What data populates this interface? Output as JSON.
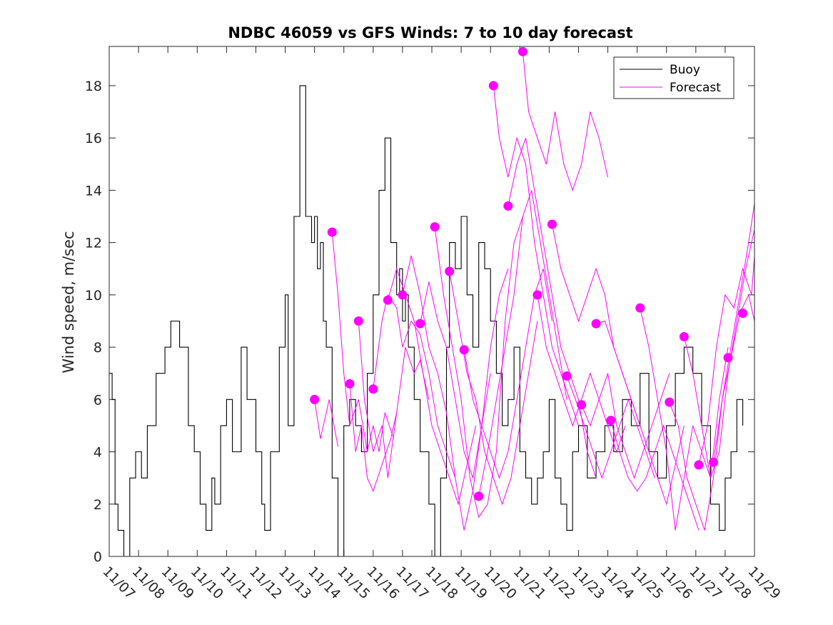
{
  "chart_data": {
    "type": "line",
    "title": "NDBC 46059 vs GFS Winds: 7 to 10 day forecast",
    "xlabel": "",
    "ylabel": "Wind speed, m/sec",
    "xlim": [
      0,
      22
    ],
    "ylim": [
      0,
      19.5
    ],
    "xtick_labels": [
      "11/07",
      "11/08",
      "11/09",
      "11/10",
      "11/11",
      "11/12",
      "11/13",
      "11/14",
      "11/15",
      "11/16",
      "11/17",
      "11/18",
      "11/19",
      "11/20",
      "11/21",
      "11/22",
      "11/23",
      "11/24",
      "11/25",
      "11/26",
      "11/27",
      "11/28",
      "11/29"
    ],
    "ytick_values": [
      0,
      2,
      4,
      6,
      8,
      10,
      12,
      14,
      16,
      18
    ],
    "legend": {
      "position": "top-right",
      "entries": [
        {
          "name": "Buoy",
          "color": "#000000"
        },
        {
          "name": "Forecast",
          "color": "#ff00ff"
        }
      ]
    },
    "series": [
      {
        "name": "Buoy",
        "color": "#000000",
        "x": [
          0,
          0.1,
          0.2,
          0.3,
          0.5,
          0.7,
          0.9,
          1.1,
          1.3,
          1.6,
          1.9,
          2.1,
          2.4,
          2.7,
          2.9,
          3.1,
          3.3,
          3.5,
          3.6,
          3.8,
          4.0,
          4.2,
          4.5,
          4.7,
          5.0,
          5.2,
          5.3,
          5.5,
          5.8,
          6.0,
          6.1,
          6.3,
          6.5,
          6.7,
          6.9,
          7.0,
          7.1,
          7.2,
          7.3,
          7.4,
          7.6,
          7.8,
          8.0,
          8.2,
          8.4,
          8.6,
          8.8,
          9.0,
          9.2,
          9.4,
          9.6,
          9.8,
          9.9,
          10.0,
          10.1,
          10.2,
          10.4,
          10.6,
          10.9,
          11.1,
          11.3,
          11.5,
          11.6,
          11.8,
          12.0,
          12.2,
          12.4,
          12.6,
          12.8,
          13.0,
          13.2,
          13.4,
          13.6,
          13.8,
          14.0,
          14.2,
          14.4,
          14.6,
          14.8,
          15.0,
          15.2,
          15.4,
          15.6,
          15.8,
          16.0,
          16.3,
          16.6,
          16.9,
          17.2,
          17.5,
          17.8,
          18.1,
          18.4,
          18.7,
          19.0,
          19.3,
          19.6,
          19.9,
          20.2,
          20.5,
          20.8,
          21.0,
          21.2,
          21.4,
          21.6
        ],
        "y": [
          7,
          6,
          2,
          1,
          0,
          3,
          4,
          3,
          5,
          7,
          8,
          9,
          8,
          5,
          4,
          2,
          1,
          3,
          2,
          5,
          6,
          4,
          8,
          6,
          4,
          2,
          1,
          4,
          8,
          10,
          5,
          13,
          18,
          13,
          12,
          13,
          11,
          12,
          9,
          8,
          3,
          0,
          5,
          6,
          5,
          4,
          7,
          10,
          14,
          16,
          12,
          10,
          11,
          9,
          10,
          8,
          6,
          4,
          2,
          0,
          3,
          8,
          12,
          11,
          13,
          10,
          8,
          12,
          11,
          9,
          7,
          5,
          6,
          8,
          4,
          3,
          2,
          3,
          4,
          6,
          3,
          2,
          1,
          4,
          5,
          3,
          4,
          5,
          4,
          6,
          5,
          7,
          4,
          3,
          5,
          7,
          8,
          7,
          5,
          2,
          1,
          3,
          4,
          6,
          5
        ]
      },
      {
        "name": "Forecast",
        "color": "#ff00ff",
        "x": [
          7.0,
          7.2,
          7.5,
          7.8
        ],
        "y": [
          6.0,
          4.5,
          6.0,
          4.2
        ]
      },
      {
        "name": "Forecast",
        "color": "#ff00ff",
        "x": [
          7.6,
          7.8,
          8.0,
          8.2,
          8.5,
          8.8,
          9.0,
          9.2,
          9.4,
          9.7
        ],
        "y": [
          12.4,
          10.0,
          7.0,
          5.0,
          6.0,
          4.0,
          5.0,
          4.0,
          5.5,
          4.5
        ]
      },
      {
        "name": "Forecast",
        "color": "#ff00ff",
        "x": [
          8.2,
          8.4,
          8.6,
          8.8,
          9.0,
          9.3,
          9.6,
          9.8
        ],
        "y": [
          6.6,
          4.0,
          5.0,
          3.0,
          2.5,
          3.5,
          4.5,
          5.5
        ]
      },
      {
        "name": "Forecast",
        "color": "#ff00ff",
        "x": [
          8.5,
          8.7,
          9.0,
          9.3,
          9.5,
          9.8,
          10.1,
          10.4,
          10.6,
          10.9
        ],
        "y": [
          9.0,
          6.0,
          4.0,
          5.0,
          3.0,
          5.5,
          8.0,
          7.0,
          7.5,
          6.0
        ]
      },
      {
        "name": "Forecast",
        "color": "#ff00ff",
        "x": [
          9.0,
          9.3,
          9.5,
          9.8,
          10.0,
          10.3,
          10.6,
          10.9,
          11.2,
          11.5,
          11.8
        ],
        "y": [
          6.4,
          9.0,
          10.0,
          9.5,
          8.0,
          9.0,
          8.5,
          7.0,
          5.0,
          4.0,
          3.0
        ]
      },
      {
        "name": "Forecast",
        "color": "#ff00ff",
        "x": [
          9.5,
          9.8,
          10.1,
          10.4,
          10.7,
          11.0,
          11.3,
          11.6,
          11.9,
          12.2,
          12.5
        ],
        "y": [
          9.8,
          11.0,
          10.0,
          9.0,
          7.0,
          5.0,
          4.0,
          3.0,
          2.0,
          3.5,
          5.0
        ]
      },
      {
        "name": "Forecast",
        "color": "#ff00ff",
        "x": [
          10.0,
          10.3,
          10.6,
          10.9,
          11.2,
          11.5,
          11.8,
          12.1,
          12.4,
          12.7,
          13.0
        ],
        "y": [
          10.0,
          11.5,
          10.0,
          8.0,
          7.0,
          5.5,
          3.0,
          1.0,
          2.5,
          5.0,
          7.0
        ]
      },
      {
        "name": "Forecast",
        "color": "#ff00ff",
        "x": [
          10.6,
          10.9,
          11.2,
          11.5,
          11.8,
          12.1,
          12.4,
          12.7,
          13.0,
          13.3,
          13.6
        ],
        "y": [
          8.9,
          10.5,
          9.0,
          8.0,
          6.0,
          4.0,
          3.0,
          5.0,
          8.0,
          10.0,
          11.0
        ]
      },
      {
        "name": "Forecast",
        "color": "#ff00ff",
        "x": [
          11.1,
          11.4,
          11.7,
          12.0,
          12.3,
          12.6,
          12.9,
          13.2,
          13.5,
          13.8,
          14.1
        ],
        "y": [
          12.6,
          10.0,
          8.0,
          6.0,
          3.0,
          1.5,
          2.0,
          4.0,
          9.0,
          12.0,
          13.0
        ]
      },
      {
        "name": "Forecast",
        "color": "#ff00ff",
        "x": [
          11.6,
          11.9,
          12.2,
          12.5,
          12.8,
          13.1,
          13.4,
          13.7,
          14.0,
          14.3,
          14.6
        ],
        "y": [
          10.9,
          9.0,
          7.0,
          6.0,
          4.0,
          3.0,
          2.0,
          3.0,
          5.0,
          7.0,
          9.0
        ]
      },
      {
        "name": "Forecast",
        "color": "#ff00ff",
        "x": [
          12.1,
          12.4,
          12.7,
          13.0,
          13.3,
          13.6,
          13.9,
          14.2,
          14.5,
          14.8,
          15.1
        ],
        "y": [
          7.9,
          6.0,
          5.0,
          4.0,
          3.0,
          4.0,
          6.0,
          8.0,
          10.0,
          11.0,
          9.0
        ]
      },
      {
        "name": "Forecast",
        "color": "#ff00ff",
        "x": [
          12.6,
          12.9,
          13.2,
          13.5,
          13.8,
          14.1,
          14.4,
          14.7,
          15.0,
          15.3,
          15.6
        ],
        "y": [
          2.3,
          4.0,
          6.0,
          8.0,
          10.0,
          13.0,
          14.0,
          12.0,
          10.0,
          8.0,
          6.0
        ]
      },
      {
        "name": "Forecast",
        "color": "#ff00ff",
        "x": [
          13.1,
          13.3,
          13.6,
          13.9,
          14.2,
          14.5,
          14.8,
          15.1,
          15.4,
          15.7,
          16.0
        ],
        "y": [
          18.0,
          16.0,
          14.5,
          16.0,
          15.0,
          12.0,
          10.0,
          8.0,
          7.0,
          6.0,
          5.0
        ]
      },
      {
        "name": "Forecast",
        "color": "#ff00ff",
        "x": [
          13.6,
          13.9,
          14.2,
          14.5,
          14.8,
          15.1,
          15.4,
          15.7,
          16.0,
          16.3,
          16.6
        ],
        "y": [
          13.4,
          15.0,
          16.0,
          14.0,
          12.0,
          10.0,
          8.0,
          7.0,
          6.0,
          4.0,
          3.0
        ]
      },
      {
        "name": "Forecast",
        "color": "#ff00ff",
        "x": [
          14.1,
          14.3,
          14.6,
          14.9,
          15.2,
          15.5,
          15.8,
          16.1,
          16.4,
          16.7,
          17.0
        ],
        "y": [
          19.3,
          17.0,
          16.0,
          15.0,
          17.0,
          15.0,
          14.0,
          15.0,
          17.0,
          16.0,
          14.5
        ]
      },
      {
        "name": "Forecast",
        "color": "#ff00ff",
        "x": [
          14.6,
          14.9,
          15.2,
          15.5,
          15.8,
          16.1,
          16.4,
          16.7,
          17.0,
          17.3,
          17.6
        ],
        "y": [
          10.0,
          8.0,
          7.0,
          6.0,
          5.0,
          6.0,
          7.0,
          6.0,
          5.0,
          4.0,
          5.0
        ]
      },
      {
        "name": "Forecast",
        "color": "#ff00ff",
        "x": [
          15.1,
          15.4,
          15.7,
          16.0,
          16.3,
          16.6,
          16.9,
          17.2,
          17.5,
          17.8,
          18.1
        ],
        "y": [
          12.7,
          11.0,
          10.0,
          9.0,
          10.0,
          11.0,
          10.0,
          8.0,
          7.0,
          6.0,
          5.0
        ]
      },
      {
        "name": "Forecast",
        "color": "#ff00ff",
        "x": [
          15.6,
          15.9,
          16.2,
          16.5,
          16.8,
          17.1,
          17.4,
          17.7,
          18.0,
          18.3,
          18.6
        ],
        "y": [
          6.9,
          6.0,
          5.0,
          4.0,
          3.0,
          4.0,
          5.0,
          6.0,
          5.0,
          4.0,
          3.0
        ]
      },
      {
        "name": "Forecast",
        "color": "#ff00ff",
        "x": [
          16.1,
          16.4,
          16.7,
          17.0,
          17.3,
          17.6,
          17.9,
          18.2,
          18.5,
          18.8,
          19.1
        ],
        "y": [
          5.8,
          5.0,
          6.0,
          7.0,
          5.0,
          4.0,
          3.0,
          4.0,
          5.0,
          6.0,
          7.0
        ]
      },
      {
        "name": "Forecast",
        "color": "#ff00ff",
        "x": [
          16.6,
          16.9,
          17.2,
          17.5,
          17.8,
          18.1,
          18.4,
          18.7,
          19.0,
          19.3,
          19.6
        ],
        "y": [
          8.9,
          9.0,
          8.0,
          7.0,
          6.0,
          5.0,
          4.0,
          3.0,
          2.0,
          3.5,
          5.0
        ]
      },
      {
        "name": "Forecast",
        "color": "#ff00ff",
        "x": [
          17.1,
          17.4,
          17.7,
          18.0,
          18.3,
          18.6,
          18.9,
          19.2,
          19.5,
          19.8,
          20.1
        ],
        "y": [
          5.2,
          4.0,
          3.0,
          2.5,
          3.0,
          4.0,
          5.0,
          4.0,
          3.0,
          2.0,
          1.0
        ]
      },
      {
        "name": "Forecast",
        "color": "#ff00ff",
        "x": [
          18.1,
          18.4,
          18.7,
          19.0,
          19.3,
          19.6,
          19.9,
          20.2,
          20.5,
          20.8,
          21.1
        ],
        "y": [
          9.5,
          8.0,
          6.0,
          4.0,
          1.0,
          3.0,
          5.0,
          4.0,
          3.0,
          6.0,
          8.0
        ]
      },
      {
        "name": "Forecast",
        "color": "#ff00ff",
        "x": [
          19.1,
          19.4,
          19.7,
          20.0,
          20.3,
          20.6,
          20.9,
          21.2,
          21.5,
          21.8,
          22.0
        ],
        "y": [
          5.9,
          5.0,
          3.0,
          2.0,
          1.0,
          3.0,
          6.0,
          8.0,
          10.0,
          12.0,
          13.5
        ]
      },
      {
        "name": "Forecast",
        "color": "#ff00ff",
        "x": [
          19.6,
          19.9,
          20.2,
          20.5,
          20.8,
          21.1,
          21.4,
          21.7,
          22.0
        ],
        "y": [
          8.4,
          7.0,
          5.0,
          3.0,
          4.0,
          7.0,
          9.0,
          11.0,
          12.5
        ]
      },
      {
        "name": "Forecast",
        "color": "#ff00ff",
        "x": [
          20.1,
          20.4,
          20.7,
          21.0,
          21.3,
          21.6,
          21.9,
          22.0
        ],
        "y": [
          3.5,
          5.0,
          8.0,
          10.0,
          9.5,
          11.0,
          10.0,
          11.5
        ]
      },
      {
        "name": "Forecast",
        "color": "#ff00ff",
        "x": [
          20.6,
          20.9,
          21.2,
          21.5,
          21.8,
          22.0
        ],
        "y": [
          3.6,
          6.0,
          7.6,
          9.3,
          10.0,
          9.0
        ]
      }
    ],
    "forecast_markers": {
      "x": [
        7.0,
        7.6,
        8.2,
        8.5,
        9.0,
        9.5,
        10.0,
        10.6,
        11.1,
        11.6,
        12.1,
        12.6,
        13.1,
        13.6,
        14.1,
        14.6,
        15.1,
        15.6,
        16.1,
        16.6,
        17.1,
        18.1,
        19.1,
        19.6,
        20.1,
        20.6,
        21.1,
        21.6
      ],
      "y": [
        6.0,
        12.4,
        6.6,
        9.0,
        6.4,
        9.8,
        10.0,
        8.9,
        12.6,
        10.9,
        7.9,
        2.3,
        18.0,
        13.4,
        19.3,
        10.0,
        12.7,
        6.9,
        5.8,
        8.9,
        5.2,
        9.5,
        5.9,
        8.4,
        3.5,
        3.6,
        7.6,
        9.3
      ]
    }
  }
}
